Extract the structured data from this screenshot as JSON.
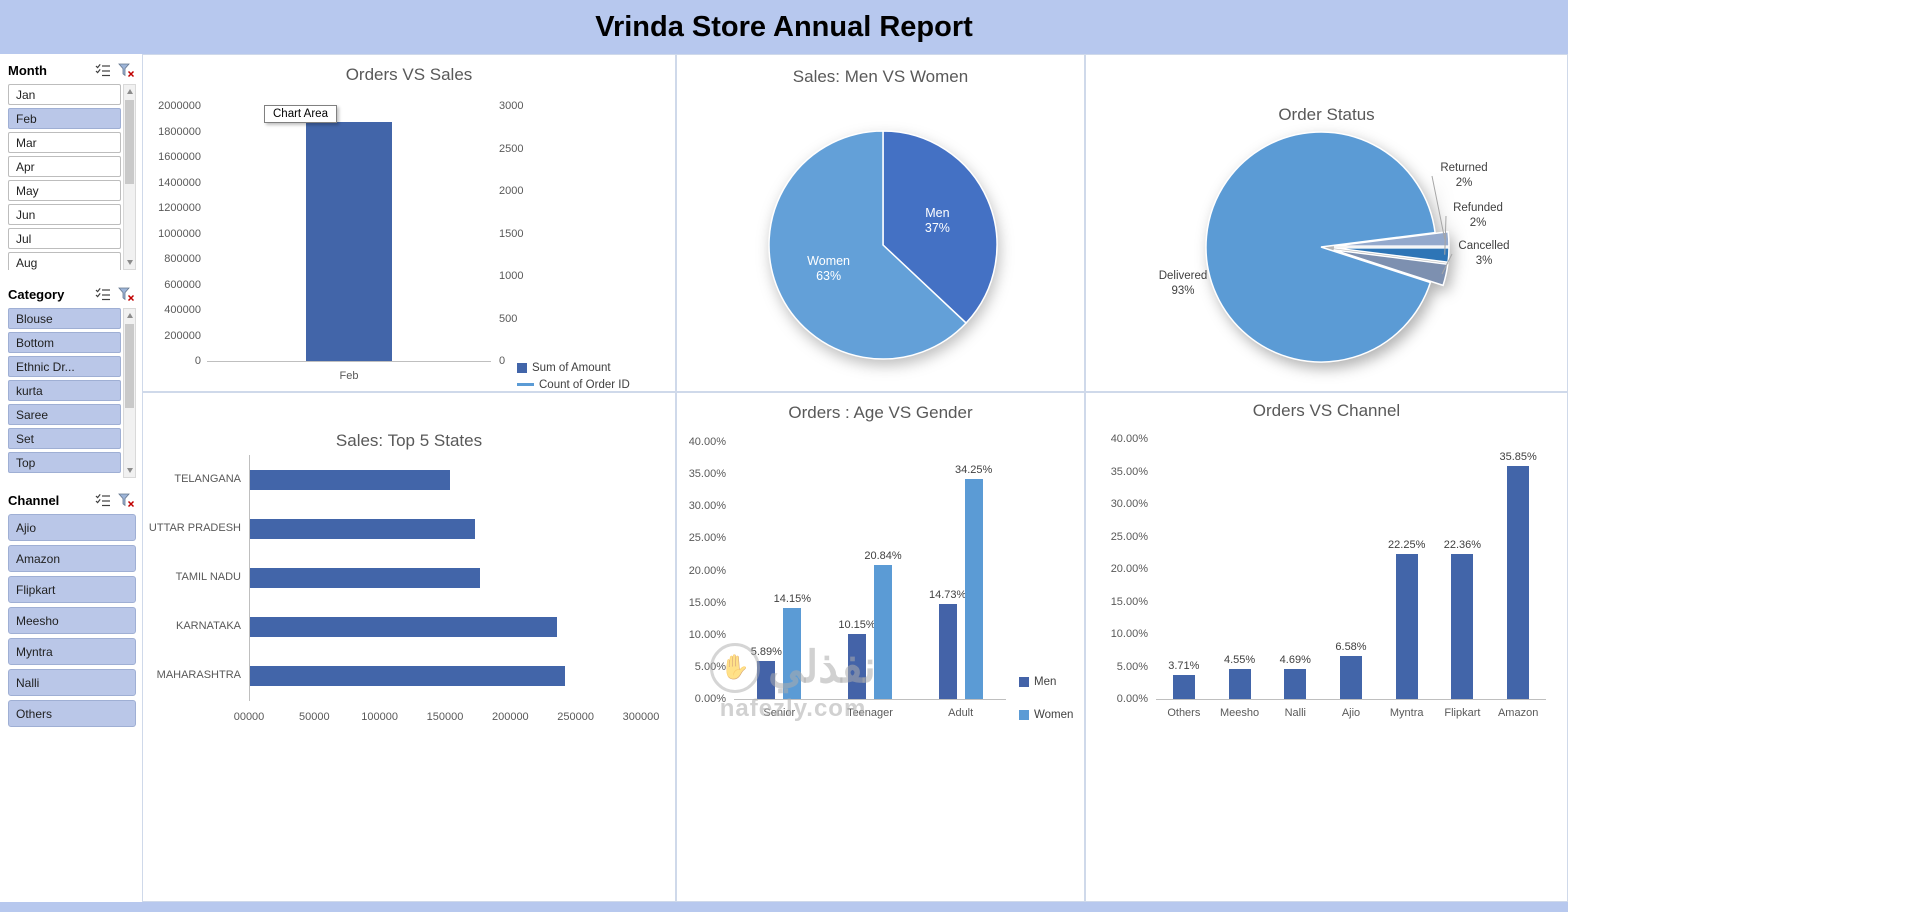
{
  "title": "Vrinda Store Annual Report",
  "watermark": {
    "logo": "نفذلي",
    "site": "nafezly.com"
  },
  "slicers": [
    {
      "title": "Month",
      "has_scrollbar": true,
      "items": [
        {
          "label": "Jan",
          "selected": false
        },
        {
          "label": "Feb",
          "selected": true
        },
        {
          "label": "Mar",
          "selected": false
        },
        {
          "label": "Apr",
          "selected": false
        },
        {
          "label": "May",
          "selected": false
        },
        {
          "label": "Jun",
          "selected": false
        },
        {
          "label": "Jul",
          "selected": false
        },
        {
          "label": "Aug",
          "selected": false
        }
      ]
    },
    {
      "title": "Category",
      "has_scrollbar": true,
      "items": [
        {
          "label": "Blouse",
          "selected": true
        },
        {
          "label": "Bottom",
          "selected": true
        },
        {
          "label": "Ethnic Dr...",
          "selected": true
        },
        {
          "label": "kurta",
          "selected": true
        },
        {
          "label": "Saree",
          "selected": true
        },
        {
          "label": "Set",
          "selected": true
        },
        {
          "label": "Top",
          "selected": true
        }
      ]
    },
    {
      "title": "Channel",
      "has_scrollbar": false,
      "items": [
        {
          "label": "Ajio",
          "selected": true
        },
        {
          "label": "Amazon",
          "selected": true
        },
        {
          "label": "Flipkart",
          "selected": true
        },
        {
          "label": "Meesho",
          "selected": true
        },
        {
          "label": "Myntra",
          "selected": true
        },
        {
          "label": "Nalli",
          "selected": true
        },
        {
          "label": "Others",
          "selected": true
        }
      ]
    }
  ],
  "chart_data": [
    {
      "id": "orders_vs_sales",
      "type": "bar",
      "title": "Orders VS Sales",
      "categories": [
        "Feb"
      ],
      "series": [
        {
          "name": "Sum of Amount",
          "values": [
            1875000
          ],
          "color": "#4265a9",
          "axis": "left",
          "marker": "square"
        },
        {
          "name": "Count of Order ID",
          "values": [],
          "color": "#5b9bd5",
          "axis": "right",
          "marker": "line"
        }
      ],
      "left_axis": {
        "max": 2000000,
        "ticks": [
          "2000000",
          "1800000",
          "1600000",
          "1400000",
          "1200000",
          "1000000",
          "800000",
          "600000",
          "400000",
          "200000",
          "0"
        ]
      },
      "right_axis": {
        "max": 3000,
        "ticks": [
          "3000",
          "2500",
          "2000",
          "1500",
          "1000",
          "500",
          "0"
        ]
      },
      "tooltip": "Chart Area"
    },
    {
      "id": "sales_men_vs_women",
      "type": "pie",
      "title": "Sales: Men VS Women",
      "slices": [
        {
          "label": "Men",
          "value": 37,
          "text": "Men\n37%",
          "color": "#4471c4"
        },
        {
          "label": "Women",
          "value": 63,
          "text": "Women\n63%",
          "color": "#63a0d8"
        }
      ]
    },
    {
      "id": "order_status",
      "type": "pie",
      "title": "Order Status",
      "slices": [
        {
          "label": "Delivered",
          "value": 93,
          "text": "Delivered\n93%",
          "color": "#5b9bd5"
        },
        {
          "label": "Returned",
          "value": 2,
          "text": "Returned\n2%",
          "color": "#94a9cc"
        },
        {
          "label": "Refunded",
          "value": 2,
          "text": "Refunded\n2%",
          "color": "#2e75b6"
        },
        {
          "label": "Cancelled",
          "value": 3,
          "text": "Cancelled\n3%",
          "color": "#7d90b0"
        }
      ]
    },
    {
      "id": "top_5_states",
      "type": "bar",
      "orientation": "horizontal",
      "title": "Sales: Top 5 States",
      "categories": [
        "TELANGANA",
        "UTTAR PRADESH",
        "TAMIL NADU",
        "KARNATAKA",
        "MAHARASHTRA"
      ],
      "values": [
        153000,
        172000,
        176000,
        235000,
        241000
      ],
      "color": "#4265a9",
      "x_axis": {
        "max": 300000,
        "ticks": [
          "00000",
          "50000",
          "100000",
          "150000",
          "200000",
          "250000",
          "300000"
        ]
      }
    },
    {
      "id": "age_vs_gender",
      "type": "bar",
      "title": "Orders : Age VS Gender",
      "categories": [
        "Senior",
        "Teenager",
        "Adult"
      ],
      "series": [
        {
          "name": "Men",
          "values": [
            5.89,
            10.15,
            14.73
          ],
          "labels": [
            "5.89%",
            "10.15%",
            "14.73%"
          ],
          "color": "#4463a8"
        },
        {
          "name": "Women",
          "values": [
            14.15,
            20.84,
            34.25
          ],
          "labels": [
            "14.15%",
            "20.84%",
            "34.25%"
          ],
          "color": "#5b9bd5"
        }
      ],
      "y_axis": {
        "max": 40,
        "ticks": [
          "40.00%",
          "35.00%",
          "30.00%",
          "25.00%",
          "20.00%",
          "15.00%",
          "10.00%",
          "5.00%",
          "0.00%"
        ]
      },
      "legend": [
        "Men",
        "Women"
      ]
    },
    {
      "id": "orders_vs_channel",
      "type": "bar",
      "title": "Orders VS Channel",
      "categories": [
        "Others",
        "Meesho",
        "Nalli",
        "Ajio",
        "Myntra",
        "Flipkart",
        "Amazon"
      ],
      "values": [
        3.71,
        4.55,
        4.69,
        6.58,
        22.25,
        22.36,
        35.85
      ],
      "labels": [
        "3.71%",
        "4.55%",
        "4.69%",
        "6.58%",
        "22.25%",
        "22.36%",
        "35.85%"
      ],
      "color": "#4265a9",
      "y_axis": {
        "max": 40,
        "ticks": [
          "40.00%",
          "35.00%",
          "30.00%",
          "25.00%",
          "20.00%",
          "15.00%",
          "10.00%",
          "5.00%",
          "0.00%"
        ]
      }
    }
  ]
}
